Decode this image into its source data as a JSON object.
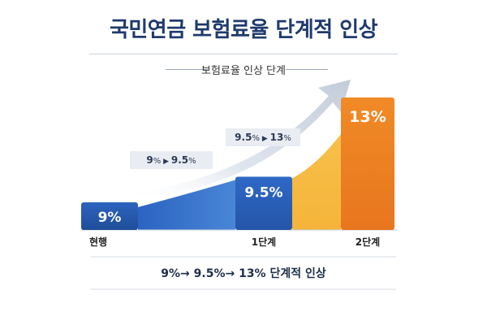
{
  "title": "국민연금 보험료율 단계적 인상",
  "subtitle": "보험료율 인상 단계",
  "chart_data": {
    "type": "bar",
    "categories": [
      "현행",
      "1단계",
      "2단계"
    ],
    "values": [
      9,
      9.5,
      13
    ],
    "value_labels": [
      "9%",
      "9.5%",
      "13%"
    ],
    "ylim": [
      0,
      15
    ],
    "step_labels": [
      {
        "from": "9",
        "to": "9.5"
      },
      {
        "from": "9.5",
        "to": "13"
      }
    ],
    "colors": {
      "bar_current": "#1f4e99",
      "bar_step1": "#2456a8",
      "bar_step2": "#e8761e",
      "area_blue": "#4a86d6",
      "area_orange": "#f5b43a",
      "arrow": "#c3cdd9"
    }
  },
  "footer": "9%→ 9.5%→ 13% 단계적 인상"
}
